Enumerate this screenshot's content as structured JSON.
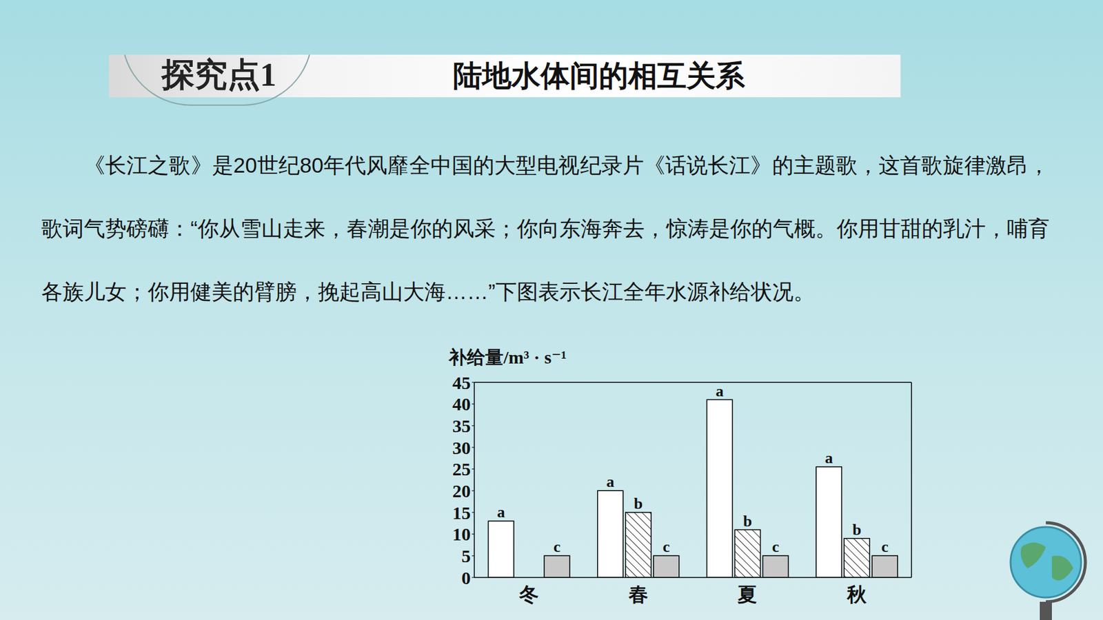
{
  "header": {
    "tag": "探究点1",
    "title": "陆地水体间的相互关系"
  },
  "paragraph": "《长江之歌》是20世纪80年代风靡全中国的大型电视纪录片《话说长江》的主题歌，这首歌旋律激昂，歌词气势磅礴：“你从雪山走来，春潮是你的风采；你向东海奔去，惊涛是你的气概。你用甘甜的乳汁，哺育各族儿女；你用健美的臂膀，挽起高山大海……”下图表示长江全年水源补给状况。",
  "chart_data": {
    "type": "bar",
    "y_label": "补给量/m³ · s⁻¹",
    "categories": [
      "冬",
      "春",
      "夏",
      "秋"
    ],
    "series": [
      {
        "name": "a",
        "color": "#ffffff",
        "values": [
          13,
          20,
          41,
          25.5
        ]
      },
      {
        "name": "b",
        "color": "#ffffff",
        "values": [
          0,
          15,
          11,
          9
        ]
      },
      {
        "name": "c",
        "color": "#c8c8c8",
        "values": [
          5,
          5,
          5,
          5
        ]
      }
    ],
    "ylim": [
      0,
      45
    ],
    "yticks": [
      0,
      5,
      10,
      15,
      20,
      25,
      30,
      35,
      40,
      45
    ]
  }
}
